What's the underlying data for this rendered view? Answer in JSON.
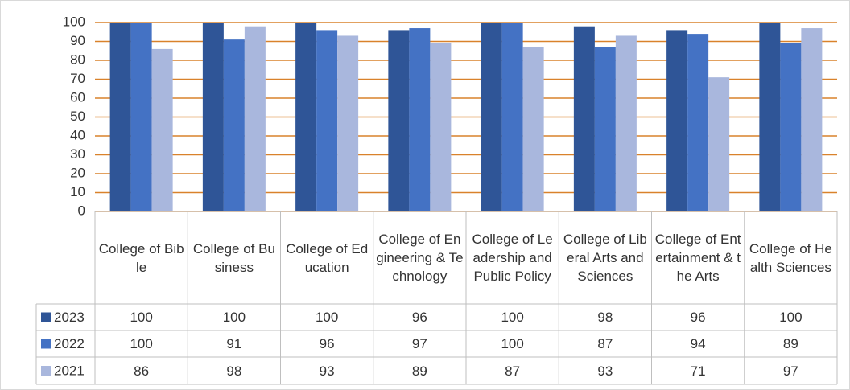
{
  "chart_data": {
    "type": "bar",
    "categories": [
      "College of Bible",
      "College of Business",
      "College of Education",
      "College of Engineering & Technology",
      "College of Leadership and Public Policy",
      "College of Liberal Arts and Sciences",
      "College of Entertainment & the Arts",
      "College of Health Sciences"
    ],
    "series": [
      {
        "name": "2023",
        "color": "#2f5597",
        "values": [
          100,
          100,
          100,
          96,
          100,
          98,
          96,
          100
        ]
      },
      {
        "name": "2022",
        "color": "#4472c4",
        "values": [
          100,
          91,
          96,
          97,
          100,
          87,
          94,
          89
        ]
      },
      {
        "name": "2021",
        "color": "#a9b7dd",
        "values": [
          86,
          98,
          93,
          89,
          87,
          93,
          71,
          97
        ]
      }
    ],
    "ylim": [
      0,
      100
    ],
    "yticks": [
      0,
      10,
      20,
      30,
      40,
      50,
      60,
      70,
      80,
      90,
      100
    ],
    "grid": true,
    "grid_color": "#d9822b",
    "legend": "data-table"
  }
}
